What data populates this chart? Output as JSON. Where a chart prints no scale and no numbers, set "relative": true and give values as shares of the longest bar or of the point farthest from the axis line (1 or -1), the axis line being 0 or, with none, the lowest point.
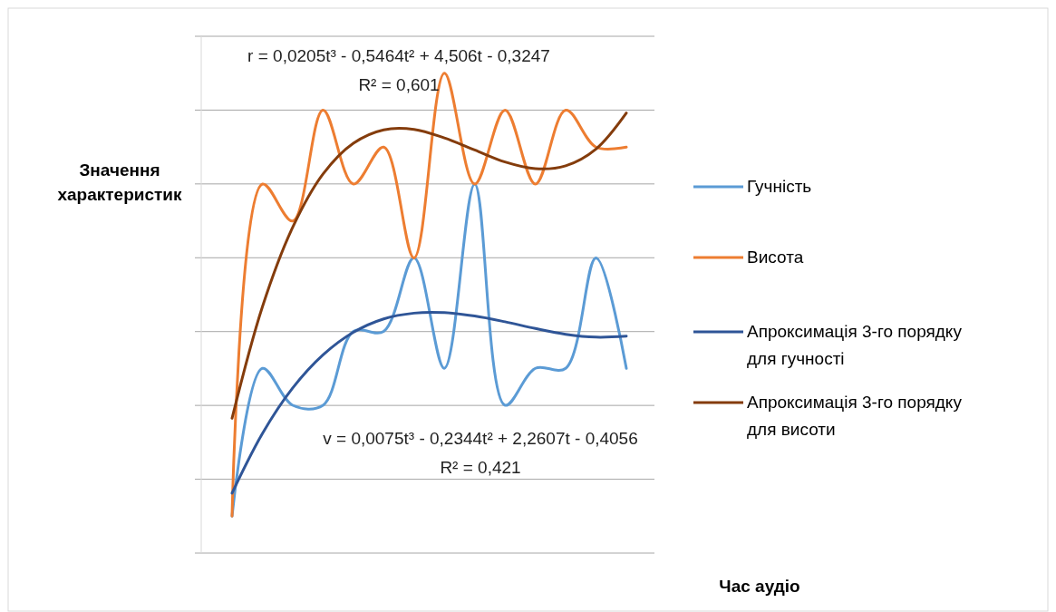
{
  "chart_data": {
    "type": "line",
    "relative": true,
    "xlabel": "Час аудіо",
    "ylabel": "Значення характеристик",
    "categories": [
      null,
      null,
      null,
      null,
      null,
      null,
      null,
      null,
      null,
      null,
      null,
      null,
      null,
      null
    ],
    "series": [
      {
        "name": "Гучність",
        "color": "#5b9bd5",
        "values": [
          0.077,
          0.385,
          0.308,
          0.308,
          0.462,
          0.462,
          0.615,
          0.385,
          0.769,
          0.308,
          0.385,
          0.385,
          0.615,
          0.385
        ]
      },
      {
        "name": "Висота",
        "color": "#ed7d31",
        "values": [
          0.077,
          0.769,
          0.692,
          0.923,
          0.769,
          0.846,
          0.615,
          1,
          0.769,
          0.923,
          0.769,
          0.923,
          0.846,
          0.846
        ]
      },
      {
        "name": "Апроксимація 3-го порядку для гучності",
        "color": "#2f5597",
        "values": [
          0.125,
          0.249,
          0.344,
          0.413,
          0.46,
          0.488,
          0.5,
          0.501,
          0.494,
          0.482,
          0.468,
          0.456,
          0.45,
          0.452
        ]
      },
      {
        "name": "Апроксимація 3-го порядку для висоти",
        "color": "#843c0c",
        "values": [
          0.281,
          0.513,
          0.679,
          0.79,
          0.854,
          0.882,
          0.883,
          0.865,
          0.84,
          0.815,
          0.801,
          0.807,
          0.842,
          0.917
        ]
      }
    ],
    "annotations": [
      "r = 0,0205t³ - 0,5464t² + 4,506t - 0,3247",
      "R² = 0,601",
      "v = 0,0075t³ - 0,2344t² + 2,2607t - 0,4056",
      "R² = 0,421"
    ],
    "grid": "y",
    "legend": "right",
    "line_style": "solid",
    "marker": "none"
  }
}
